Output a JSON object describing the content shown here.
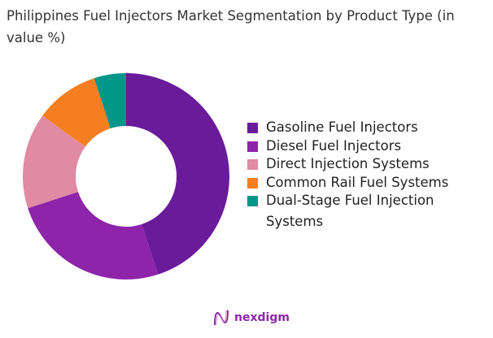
{
  "chart_data": {
    "type": "pie",
    "variant": "donut",
    "title": "Philippines Fuel Injectors Market Segmentation by Product Type (in value %)",
    "categories": [
      "Gasoline Fuel Injectors",
      "Diesel Fuel Injectors",
      "Direct Injection Systems",
      "Common Rail Fuel Systems",
      "Dual-Stage Fuel Injection Systems"
    ],
    "values": [
      45,
      25,
      15,
      10,
      5
    ],
    "colors": [
      "#6a1b9a",
      "#8e24aa",
      "#e08aa3",
      "#f57f20",
      "#009688"
    ],
    "legend_position": "right"
  },
  "logo": {
    "text": "nexdigm"
  }
}
